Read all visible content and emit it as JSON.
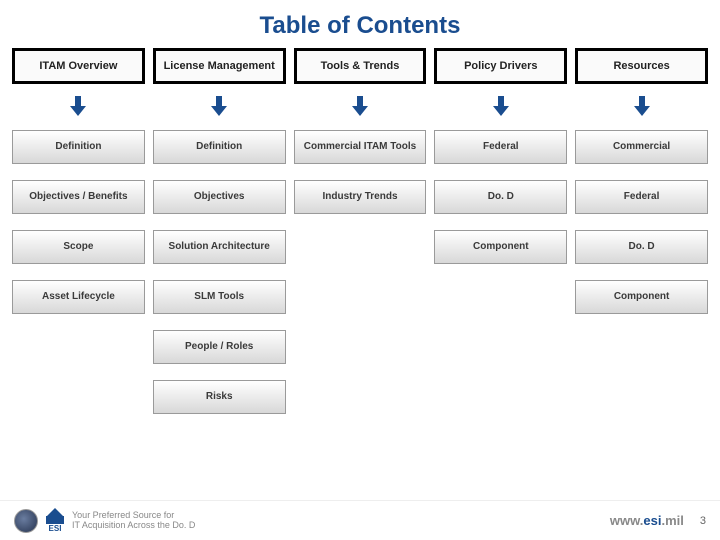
{
  "title": {
    "text": "Table of Contents",
    "color": "#1a4d8f",
    "fontsize": 24
  },
  "arrow": {
    "color": "#1a4d8f",
    "width": 16,
    "height": 20
  },
  "item_box": {
    "gradient_top": "#ffffff",
    "gradient_bottom": "#d8d8d8",
    "border_color": "#9a9a9a",
    "text_color": "#3a3a3a"
  },
  "header_box": {
    "outer_bg": "#000000",
    "inner_bg": "#fafafa",
    "text_color": "#222222"
  },
  "columns": [
    {
      "header": "ITAM Overview",
      "items": [
        "Definition",
        "Objectives / Benefits",
        "Scope",
        "Asset Lifecycle"
      ]
    },
    {
      "header": "License Management",
      "items": [
        "Definition",
        "Objectives",
        "Solution Architecture",
        "SLM Tools",
        "People / Roles",
        "Risks"
      ]
    },
    {
      "header": "Tools & Trends",
      "items": [
        "Commercial ITAM Tools",
        "Industry Trends"
      ]
    },
    {
      "header": "Policy Drivers",
      "items": [
        "Federal",
        "Do. D",
        "Component"
      ]
    },
    {
      "header": "Resources",
      "items": [
        "Commercial",
        "Federal",
        "Do. D",
        "Component"
      ]
    }
  ],
  "footer": {
    "tagline_l1": "Your Preferred Source for",
    "tagline_l2": "IT Acquisition Across the Do. D",
    "esi_label": "ESI",
    "url_prefix": "www.",
    "url_mid": "esi",
    "url_suffix": ".mil",
    "url_prefix_color": "#888888",
    "url_mid_color": "#1a4d8f",
    "url_suffix_color": "#888888",
    "page": "3"
  }
}
